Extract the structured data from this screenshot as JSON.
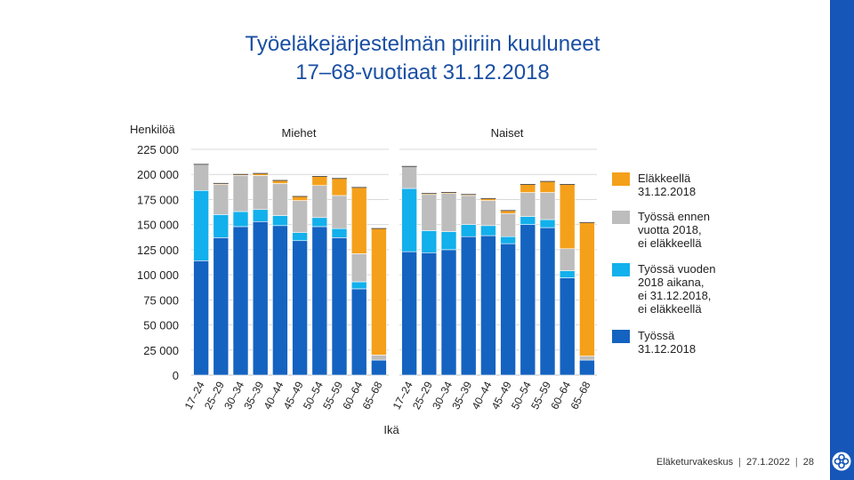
{
  "title": {
    "line1": "Työeläkejärjestelmän piiriin kuuluneet",
    "line2": "17–68-vuotiaat 31.12.2018"
  },
  "footer": {
    "organization": "Eläketurvakeskus",
    "date": "27.1.2022",
    "page": "28"
  },
  "chart_data": {
    "type": "bar",
    "stacked": true,
    "ylabel": "Henkilöä",
    "xlabel": "Ikä",
    "ylim": [
      0,
      225000
    ],
    "yticks": [
      0,
      25000,
      50000,
      75000,
      100000,
      125000,
      150000,
      175000,
      200000,
      225000
    ],
    "ytick_labels": [
      "0",
      "25 000",
      "50 000",
      "75 000",
      "100 000",
      "125 000",
      "150 000",
      "175 000",
      "200 000",
      "225 000"
    ],
    "categories": [
      "17–24",
      "25–29",
      "30–34",
      "35–39",
      "40–44",
      "45–49",
      "50–54",
      "55–59",
      "60–64",
      "65–68"
    ],
    "legend": [
      {
        "key": "retired",
        "label": "Eläkkeellä\n31.12.2018",
        "color": "#f5a01a"
      },
      {
        "key": "worked_before",
        "label": "Työssä ennen\nvuotta 2018,\nei eläkkeellä",
        "color": "#bdbdbd"
      },
      {
        "key": "worked_during",
        "label": "Työssä vuoden\n2018 aikana,\nei 31.12.2018,\nei eläkkeellä",
        "color": "#12b0ec"
      },
      {
        "key": "working",
        "label": "Työssä\n31.12.2018",
        "color": "#1463c1"
      }
    ],
    "panels": [
      {
        "name": "Miehet",
        "series": [
          {
            "key": "working",
            "values": [
              114000,
              137000,
              148000,
              153000,
              149000,
              134000,
              148000,
              137000,
              86000,
              15000
            ]
          },
          {
            "key": "worked_during",
            "values": [
              70000,
              23000,
              15000,
              12000,
              10000,
              8000,
              9000,
              9000,
              7000,
              0
            ]
          },
          {
            "key": "worked_before",
            "values": [
              26000,
              30000,
              36000,
              34000,
              32000,
              32000,
              32000,
              33000,
              28000,
              5000
            ]
          },
          {
            "key": "retired",
            "values": [
              0,
              1000,
              1000,
              2000,
              3000,
              4000,
              9000,
              17000,
              66000,
              126000
            ]
          }
        ]
      },
      {
        "name": "Naiset",
        "series": [
          {
            "key": "working",
            "values": [
              123000,
              122000,
              125000,
              138000,
              139000,
              131000,
              150000,
              147000,
              97000,
              15000
            ]
          },
          {
            "key": "worked_during",
            "values": [
              63000,
              22000,
              18000,
              12000,
              10000,
              7000,
              8000,
              8000,
              7000,
              0
            ]
          },
          {
            "key": "worked_before",
            "values": [
              22000,
              36000,
              38000,
              29000,
              25000,
              23000,
              24000,
              27000,
              22000,
              4000
            ]
          },
          {
            "key": "retired",
            "values": [
              0,
              1000,
              1000,
              1000,
              2000,
              3000,
              8000,
              11000,
              64000,
              133000
            ]
          }
        ]
      }
    ]
  }
}
